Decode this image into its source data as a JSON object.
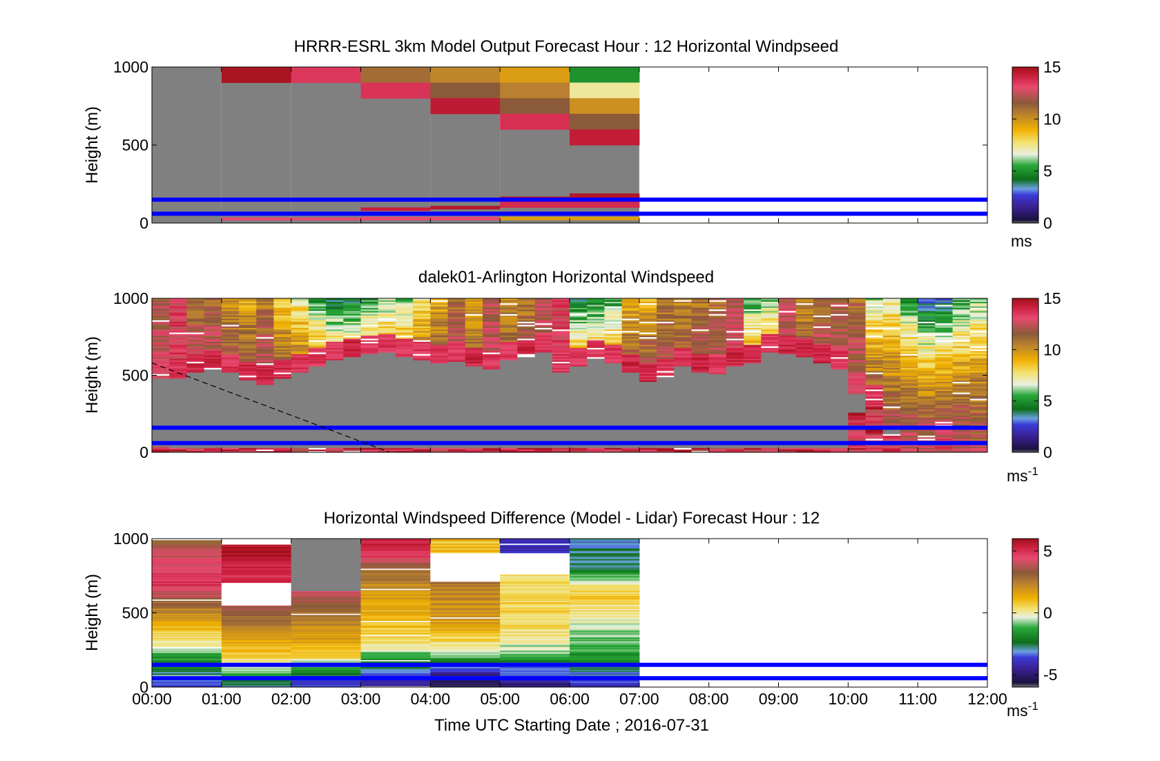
{
  "figure": {
    "xlabel": "Time UTC  Starting Date ; 2016-07-31",
    "x_ticks": [
      "00:00",
      "01:00",
      "02:00",
      "03:00",
      "04:00",
      "05:00",
      "06:00",
      "07:00",
      "08:00",
      "09:00",
      "10:00",
      "11:00",
      "12:00"
    ]
  },
  "chart_data": [
    {
      "type": "heatmap",
      "title": "HRRR-ESRL 3km Model Output   Forecast Hour : 12 Horizontal Windpseed",
      "ylabel": "Height (m)",
      "xlim": [
        "00:00",
        "12:00"
      ],
      "ylim": [
        0,
        1000
      ],
      "y_ticks": [
        "0",
        "500",
        "1000"
      ],
      "colorbar": {
        "unit": "ms",
        "range": [
          0,
          15
        ],
        "ticks": [
          "0",
          "5",
          "10",
          "15"
        ]
      },
      "reference_lines_m": [
        60,
        150
      ],
      "hours": [
        "00:00",
        "01:00",
        "02:00",
        "03:00",
        "04:00",
        "05:00",
        "06:00"
      ],
      "data_coverage_hours": [
        0,
        7
      ],
      "columns": [
        {
          "hour": "00:00",
          "cells": []
        },
        {
          "hour": "01:00",
          "cells": [
            {
              "z0": 900,
              "z1": 1000,
              "speed": 14.8
            },
            {
              "z0": 20,
              "z1": 35,
              "speed": 13
            }
          ]
        },
        {
          "hour": "02:00",
          "cells": [
            {
              "z0": 900,
              "z1": 1000,
              "speed": 13.5
            },
            {
              "z0": 20,
              "z1": 35,
              "speed": 13
            }
          ]
        },
        {
          "hour": "03:00",
          "cells": [
            {
              "z0": 900,
              "z1": 1000,
              "speed": 11
            },
            {
              "z0": 800,
              "z1": 900,
              "speed": 13.6
            },
            {
              "z0": 80,
              "z1": 100,
              "speed": 14.2
            },
            {
              "z0": 20,
              "z1": 40,
              "speed": 13
            }
          ]
        },
        {
          "hour": "04:00",
          "cells": [
            {
              "z0": 900,
              "z1": 1000,
              "speed": 10.3
            },
            {
              "z0": 800,
              "z1": 900,
              "speed": 11.5
            },
            {
              "z0": 700,
              "z1": 800,
              "speed": 14.4
            },
            {
              "z0": 90,
              "z1": 110,
              "speed": 14.6
            },
            {
              "z0": 20,
              "z1": 40,
              "speed": 13
            }
          ]
        },
        {
          "hour": "05:00",
          "cells": [
            {
              "z0": 900,
              "z1": 1000,
              "speed": 9.6
            },
            {
              "z0": 800,
              "z1": 900,
              "speed": 10.5
            },
            {
              "z0": 700,
              "z1": 800,
              "speed": 11.5
            },
            {
              "z0": 600,
              "z1": 700,
              "speed": 13.7
            },
            {
              "z0": 150,
              "z1": 170,
              "speed": 14.5
            },
            {
              "z0": 100,
              "z1": 150,
              "speed": 13.8
            },
            {
              "z0": 20,
              "z1": 40,
              "speed": 9.5
            }
          ]
        },
        {
          "hour": "06:00",
          "cells": [
            {
              "z0": 900,
              "z1": 1000,
              "speed": 5
            },
            {
              "z0": 800,
              "z1": 900,
              "speed": 7.3
            },
            {
              "z0": 700,
              "z1": 800,
              "speed": 10
            },
            {
              "z0": 600,
              "z1": 700,
              "speed": 11.5
            },
            {
              "z0": 500,
              "z1": 600,
              "speed": 14.3
            },
            {
              "z0": 160,
              "z1": 190,
              "speed": 14.6
            },
            {
              "z0": 100,
              "z1": 160,
              "speed": 13.8
            },
            {
              "z0": 20,
              "z1": 40,
              "speed": 9.5
            }
          ]
        }
      ],
      "missing_below_m": [
        null,
        900,
        900,
        800,
        700,
        600,
        500
      ]
    },
    {
      "type": "heatmap",
      "title": "dalek01-Arlington  Horizontal Windspeed",
      "ylabel": "Height (m)",
      "xlim": [
        "00:00",
        "12:00"
      ],
      "ylim": [
        0,
        1000
      ],
      "y_ticks": [
        "0",
        "500",
        "1000"
      ],
      "colorbar": {
        "unit": "ms",
        "unit_exp": "-1",
        "range": [
          0,
          15
        ],
        "ticks": [
          "0",
          "5",
          "10",
          "15"
        ]
      },
      "reference_lines_m": [
        60,
        160
      ],
      "profile_interval_hours": 0.25,
      "profile_count": 48,
      "top_speed": [
        12,
        13,
        11,
        11,
        10,
        9,
        10.5,
        8,
        7,
        5,
        4,
        4,
        5,
        6,
        6,
        7.5,
        9,
        11,
        9,
        12,
        10,
        10.5,
        12,
        13,
        4,
        4.5,
        5,
        9,
        9,
        10.5,
        10,
        10.5,
        11,
        12,
        5,
        6,
        12,
        10,
        11,
        11.5,
        11,
        6,
        7,
        5,
        3,
        3,
        5,
        6
      ],
      "bottom_speed": [
        13,
        13.5,
        14,
        14,
        13.5,
        14,
        14,
        14,
        13.5,
        13.5,
        13.5,
        14,
        13.5,
        13.5,
        13.5,
        13.5,
        13.5,
        13.5,
        14,
        13.5,
        13.5,
        14,
        13.5,
        13.5,
        13.5,
        13.5,
        13.5,
        14,
        14,
        13.5,
        13.5,
        14,
        13.5,
        14,
        14,
        13.5,
        14,
        14,
        14,
        13.5,
        13,
        13.5,
        12,
        12.5,
        12.5,
        13,
        12.5,
        12
      ],
      "gap_top_m": [
        480,
        480,
        520,
        540,
        520,
        470,
        440,
        480,
        520,
        560,
        600,
        620,
        640,
        650,
        620,
        600,
        580,
        590,
        560,
        540,
        600,
        620,
        650,
        520,
        560,
        610,
        580,
        520,
        460,
        490,
        560,
        520,
        510,
        560,
        580,
        650,
        640,
        620,
        580,
        540,
        380,
        320,
        150,
        null,
        null,
        null,
        null,
        null
      ],
      "gap_bottom_m": [
        40,
        30,
        30,
        30,
        30,
        30,
        30,
        30,
        30,
        30,
        30,
        30,
        30,
        30,
        30,
        30,
        30,
        30,
        30,
        30,
        30,
        30,
        30,
        30,
        30,
        30,
        30,
        30,
        30,
        30,
        30,
        30,
        30,
        30,
        30,
        30,
        30,
        30,
        30,
        30,
        260,
        320,
        120,
        null,
        null,
        null,
        null,
        null
      ],
      "dashed_line": {
        "start": [
          "00:00",
          580
        ],
        "end": [
          "03:25",
          0
        ]
      }
    },
    {
      "type": "heatmap",
      "title": "Horizontal Windspeed Difference (Model - Lidar) Forecast Hour : 12",
      "ylabel": "Height (m)",
      "xlim": [
        "00:00",
        "12:00"
      ],
      "ylim": [
        0,
        1000
      ],
      "y_ticks": [
        "0",
        "500",
        "1000"
      ],
      "colorbar": {
        "unit": "ms",
        "unit_exp": "-1",
        "range": [
          -6,
          6
        ],
        "ticks": [
          "-5",
          "0",
          "5"
        ]
      },
      "reference_lines_m": [
        60,
        150
      ],
      "hours": [
        "00:00",
        "01:00",
        "02:00",
        "03:00",
        "04:00",
        "05:00",
        "06:00"
      ],
      "data_coverage_hours": [
        0,
        7
      ],
      "diff_top_m": [
        1000,
        960,
        1000,
        1000,
        1000,
        1000,
        1000
      ],
      "diff_profile_keys": [
        [
          [
            1000,
            3
          ],
          [
            900,
            4
          ],
          [
            700,
            5
          ],
          [
            500,
            2
          ],
          [
            300,
            0
          ],
          [
            150,
            -2
          ],
          [
            60,
            -3
          ],
          [
            0,
            -4
          ]
        ],
        [
          [
            960,
            6
          ],
          [
            750,
            5
          ],
          [
            700,
            null
          ],
          [
            550,
            null
          ],
          [
            540,
            3.5
          ],
          [
            300,
            1.5
          ],
          [
            150,
            0
          ],
          [
            60,
            -2
          ],
          [
            0,
            -3
          ]
        ],
        [
          [
            1000,
            null
          ],
          [
            650,
            null
          ],
          [
            640,
            4
          ],
          [
            400,
            2
          ],
          [
            200,
            0.5
          ],
          [
            150,
            -1
          ],
          [
            60,
            -3
          ],
          [
            0,
            -4
          ]
        ],
        [
          [
            1000,
            5.5
          ],
          [
            900,
            5
          ],
          [
            800,
            3
          ],
          [
            600,
            1.5
          ],
          [
            300,
            0.5
          ],
          [
            160,
            -2
          ],
          [
            60,
            -4
          ],
          [
            0,
            -5
          ]
        ],
        [
          [
            1000,
            1
          ],
          [
            900,
            null
          ],
          [
            720,
            null
          ],
          [
            700,
            2.5
          ],
          [
            400,
            1.5
          ],
          [
            200,
            -1
          ],
          [
            150,
            -3
          ],
          [
            60,
            -5
          ],
          [
            0,
            -5.5
          ]
        ],
        [
          [
            1000,
            -4
          ],
          [
            900,
            null
          ],
          [
            760,
            null
          ],
          [
            750,
            0.5
          ],
          [
            400,
            0.5
          ],
          [
            200,
            -1
          ],
          [
            150,
            -3
          ],
          [
            60,
            -4
          ],
          [
            0,
            -5
          ]
        ],
        [
          [
            1000,
            -3
          ],
          [
            800,
            -2.5
          ],
          [
            700,
            0
          ],
          [
            600,
            0.8
          ],
          [
            400,
            -0.5
          ],
          [
            150,
            -2
          ],
          [
            60,
            -3.5
          ],
          [
            0,
            -4
          ]
        ]
      ]
    }
  ]
}
